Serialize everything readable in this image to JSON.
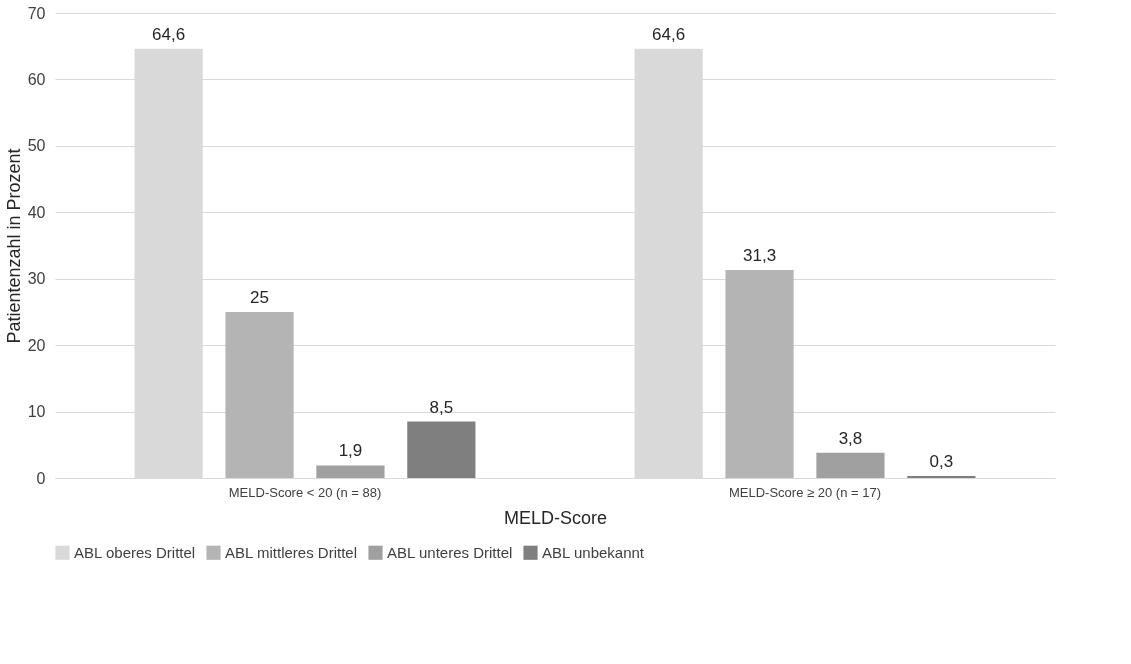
{
  "chart_data": {
    "type": "bar",
    "xlabel": "MELD-Score",
    "ylabel": "Patientenzahl in Prozent",
    "categories": [
      "MELD-Score < 20 (n = 88)",
      "MELD-Score ≥ 20 (n = 17)"
    ],
    "series": [
      {
        "name": "ABL oberes Drittel",
        "color": "#d9d9d9",
        "values": [
          64.6,
          64.6
        ],
        "value_labels": [
          "64,6",
          "64,6"
        ]
      },
      {
        "name": "ABL mittleres Drittel",
        "color": "#b4b4b4",
        "values": [
          25,
          31.3
        ],
        "value_labels": [
          "25",
          "31,3"
        ]
      },
      {
        "name": "ABL unteres Drittel",
        "color": "#a0a0a0",
        "values": [
          1.9,
          3.8
        ],
        "value_labels": [
          "1,9",
          "3,8"
        ]
      },
      {
        "name": "ABL unbekannt",
        "color": "#7f7f7f",
        "values": [
          8.5,
          0.3
        ],
        "value_labels": [
          "8,5",
          "0,3"
        ]
      }
    ],
    "ylim": [
      0,
      70
    ],
    "yticks": [
      0,
      10,
      20,
      30,
      40,
      50,
      60,
      70
    ],
    "grid": "y",
    "legend": "bottom"
  }
}
